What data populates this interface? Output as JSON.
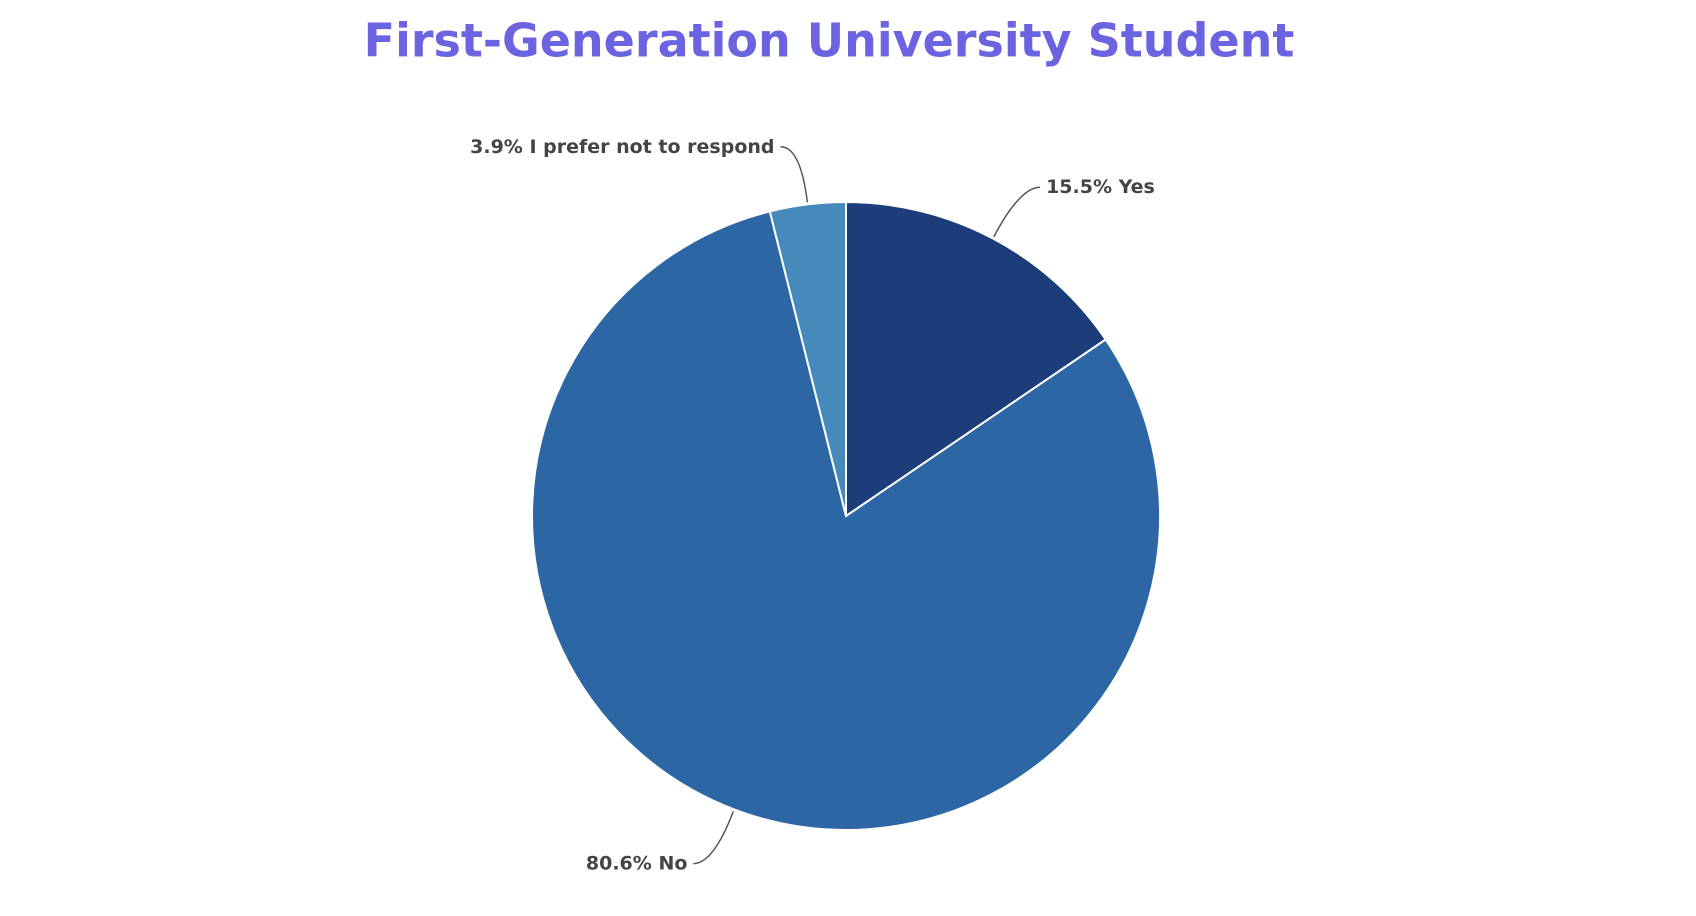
{
  "chart_data": {
    "type": "pie",
    "title": "First-Generation University Student",
    "categories": [
      "Yes",
      "No",
      "I prefer not to respond"
    ],
    "values": [
      15.5,
      80.6,
      3.9
    ],
    "value_labels": [
      "15.5%",
      "80.6%",
      "3.9%"
    ],
    "colors": [
      "#1c3d7a",
      "#2d66a5",
      "#4789bb"
    ]
  }
}
